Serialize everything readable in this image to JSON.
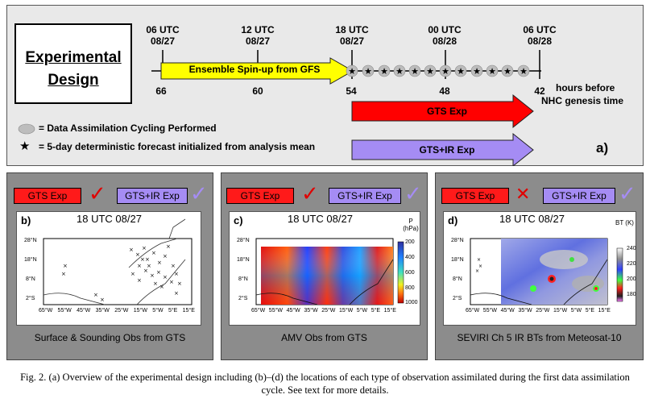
{
  "design": {
    "line1": "Experimental",
    "line2": "Design"
  },
  "timeline": {
    "top_labels": [
      {
        "time": "06 UTC",
        "date": "08/27"
      },
      {
        "time": "12 UTC",
        "date": "08/27"
      },
      {
        "time": "18 UTC",
        "date": "08/27"
      },
      {
        "time": "00 UTC",
        "date": "08/28"
      },
      {
        "time": "06 UTC",
        "date": "08/28"
      }
    ],
    "hours": [
      "66",
      "60",
      "54",
      "48",
      "42"
    ],
    "hours_label_1": "hours before",
    "hours_label_2": "NHC genesis time",
    "spinup_label": "Ensemble Spin-up from GFS",
    "spinup_color": "#ffff00",
    "gts_color": "#ff0000",
    "gtsir_color": "#a58cf4"
  },
  "experiments": {
    "gts": "GTS Exp",
    "gts_ir": "GTS+IR  Exp"
  },
  "legend": {
    "cycling": "= Data Assimilation Cycling Performed",
    "forecast": "= 5-day deterministic forecast initialized from analysis mean"
  },
  "panel_a_label": "a)",
  "panels": [
    {
      "label": "b)",
      "time": "18 UTC 08/27",
      "caption": "Surface & Sounding Obs from GTS",
      "gts": "GTS Exp",
      "gts_ir": "GTS+IR  Exp"
    },
    {
      "label": "c)",
      "time": "18 UTC 08/27",
      "caption": "AMV Obs from GTS",
      "gts": "GTS Exp",
      "gts_ir": "GTS+IR  Exp"
    },
    {
      "label": "d)",
      "time": "18 UTC 08/27",
      "caption": "SEVIRI Ch 5 IR BTs from Meteosat-10",
      "gts": "GTS Exp",
      "gts_ir": "GTS+IR  Exp"
    }
  ],
  "map_axes": {
    "lat": [
      "28°N",
      "18°N",
      "8°N",
      "2°S"
    ],
    "lon": [
      "65°W",
      "55°W",
      "45°W",
      "35°W",
      "25°W",
      "15°W",
      "5°W",
      "5°E",
      "15°E"
    ]
  },
  "colorbar_c": {
    "title1": "P",
    "title2": "(hPa)",
    "ticks": [
      "200",
      "400",
      "600",
      "800",
      "1000"
    ]
  },
  "colorbar_d": {
    "title": "BT (K)",
    "ticks": [
      "240",
      "220",
      "200",
      "180"
    ]
  },
  "caption": {
    "fig": "Fig. 2.",
    "text": "(a) Overview of the experimental design including (b)–(d) the locations of each type of observation assimilated during the first data assimilation cycle. See text for more details."
  }
}
